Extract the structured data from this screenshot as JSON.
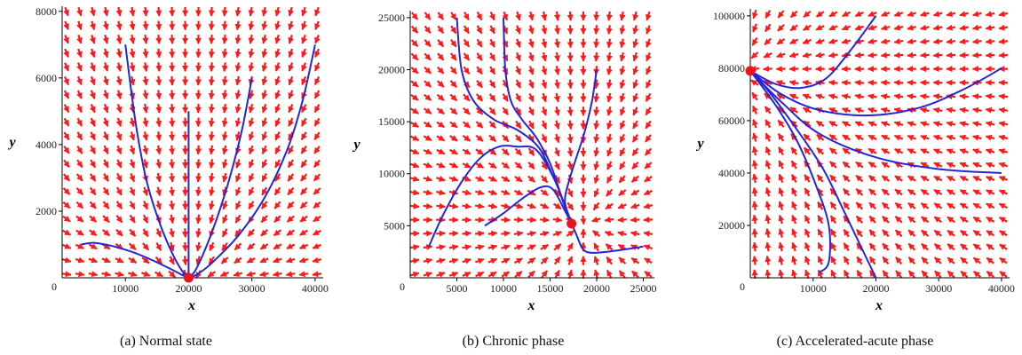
{
  "figure": {
    "colors": {
      "arrows": "#ff1a1a",
      "trajectories": "#2626d9",
      "equilibrium": "#e8141e",
      "axes": "#000000"
    },
    "panels": [
      {
        "caption": "(a)  Normal state"
      },
      {
        "caption": "(b)  Chronic phase"
      },
      {
        "caption": "(c)  Accelerated-acute phase"
      }
    ]
  },
  "chart_data": [
    {
      "type": "scatter",
      "title": "",
      "xlabel": "x",
      "ylabel": "y",
      "xlim": [
        0,
        41000
      ],
      "ylim": [
        0,
        8100
      ],
      "x_ticks": [
        10000,
        20000,
        30000,
        40000
      ],
      "y_ticks": [
        2000,
        4000,
        6000,
        8000
      ],
      "origin_label": "0",
      "grid": false,
      "equilibrium": [
        20000,
        0
      ],
      "trajectories": [
        [
          [
            3000,
            1000
          ],
          [
            5000,
            1050
          ],
          [
            8000,
            950
          ],
          [
            11000,
            780
          ],
          [
            14000,
            550
          ],
          [
            17000,
            280
          ],
          [
            19000,
            80
          ],
          [
            20000,
            0
          ]
        ],
        [
          [
            10000,
            7000
          ],
          [
            11000,
            5500
          ],
          [
            12000,
            4200
          ],
          [
            13500,
            2800
          ],
          [
            15500,
            1600
          ],
          [
            17500,
            700
          ],
          [
            19000,
            200
          ],
          [
            20000,
            0
          ]
        ],
        [
          [
            20000,
            5000
          ],
          [
            20000,
            2500
          ],
          [
            20000,
            0
          ]
        ],
        [
          [
            30000,
            6000
          ],
          [
            28500,
            4500
          ],
          [
            26500,
            3000
          ],
          [
            24500,
            1800
          ],
          [
            22500,
            800
          ],
          [
            21000,
            200
          ],
          [
            20000,
            0
          ]
        ],
        [
          [
            40000,
            7000
          ],
          [
            38000,
            5300
          ],
          [
            35500,
            3800
          ],
          [
            32000,
            2400
          ],
          [
            28000,
            1300
          ],
          [
            24000,
            500
          ],
          [
            21500,
            120
          ],
          [
            20000,
            0
          ]
        ]
      ]
    },
    {
      "type": "scatter",
      "title": "",
      "xlabel": "x",
      "ylabel": "y",
      "xlim": [
        0,
        26000
      ],
      "ylim": [
        0,
        25500
      ],
      "x_ticks": [
        5000,
        10000,
        15000,
        20000,
        25000
      ],
      "y_ticks": [
        5000,
        10000,
        15000,
        20000,
        25000
      ],
      "origin_label": "0",
      "grid": false,
      "equilibrium": [
        17300,
        5200
      ],
      "trajectories": [
        [
          [
            5000,
            25000
          ],
          [
            5500,
            20000
          ],
          [
            6800,
            17000
          ],
          [
            9000,
            15200
          ],
          [
            11500,
            14200
          ],
          [
            13800,
            12500
          ],
          [
            15300,
            9800
          ],
          [
            16500,
            7200
          ],
          [
            17300,
            5200
          ]
        ],
        [
          [
            10000,
            25000
          ],
          [
            10200,
            20000
          ],
          [
            10800,
            17000
          ],
          [
            12000,
            15200
          ],
          [
            13500,
            13500
          ],
          [
            15000,
            11000
          ],
          [
            16300,
            7600
          ],
          [
            17300,
            5200
          ]
        ],
        [
          [
            2000,
            3000
          ],
          [
            3500,
            6000
          ],
          [
            5500,
            9200
          ],
          [
            7500,
            11500
          ],
          [
            9500,
            12600
          ],
          [
            11500,
            12600
          ],
          [
            13500,
            12300
          ],
          [
            15500,
            9400
          ],
          [
            16700,
            6500
          ],
          [
            17300,
            5200
          ]
        ],
        [
          [
            8000,
            5000
          ],
          [
            10000,
            6200
          ],
          [
            12000,
            7600
          ],
          [
            14000,
            8700
          ],
          [
            15300,
            8500
          ],
          [
            16500,
            6600
          ],
          [
            17300,
            5200
          ]
        ],
        [
          [
            20000,
            20000
          ],
          [
            19500,
            17000
          ],
          [
            18700,
            14000
          ],
          [
            17800,
            11500
          ],
          [
            17000,
            9200
          ],
          [
            16600,
            7300
          ],
          [
            17300,
            5200
          ]
        ],
        [
          [
            25000,
            3000
          ],
          [
            22000,
            2600
          ],
          [
            19500,
            2400
          ],
          [
            18500,
            2800
          ],
          [
            17800,
            4200
          ],
          [
            17300,
            5200
          ]
        ]
      ]
    },
    {
      "type": "scatter",
      "title": "",
      "xlabel": "x",
      "ylabel": "y",
      "xlim": [
        0,
        41000
      ],
      "ylim": [
        0,
        102000
      ],
      "x_ticks": [
        10000,
        20000,
        30000,
        40000
      ],
      "y_ticks": [
        20000,
        40000,
        60000,
        80000,
        100000
      ],
      "origin_label": "0",
      "grid": false,
      "equilibrium": [
        0,
        79000
      ],
      "trajectories": [
        [
          [
            20000,
            100000
          ],
          [
            16000,
            87000
          ],
          [
            12000,
            76000
          ],
          [
            8000,
            72500
          ],
          [
            4000,
            74000
          ],
          [
            0,
            79000
          ]
        ],
        [
          [
            40000,
            80000
          ],
          [
            34000,
            72000
          ],
          [
            27000,
            65000
          ],
          [
            19000,
            62000
          ],
          [
            11000,
            64000
          ],
          [
            5000,
            70000
          ],
          [
            0,
            79000
          ]
        ],
        [
          [
            40000,
            40000
          ],
          [
            30000,
            41500
          ],
          [
            20000,
            46000
          ],
          [
            11000,
            55000
          ],
          [
            5000,
            67000
          ],
          [
            0,
            79000
          ]
        ],
        [
          [
            11000,
            2000
          ],
          [
            12500,
            6000
          ],
          [
            12500,
            20000
          ],
          [
            10500,
            35000
          ],
          [
            7500,
            52000
          ],
          [
            4000,
            66000
          ],
          [
            0,
            79000
          ]
        ],
        [
          [
            20000,
            0
          ],
          [
            18000,
            10000
          ],
          [
            15000,
            25000
          ],
          [
            11500,
            42000
          ],
          [
            7000,
            58000
          ],
          [
            3000,
            71000
          ],
          [
            0,
            79000
          ]
        ]
      ]
    }
  ]
}
